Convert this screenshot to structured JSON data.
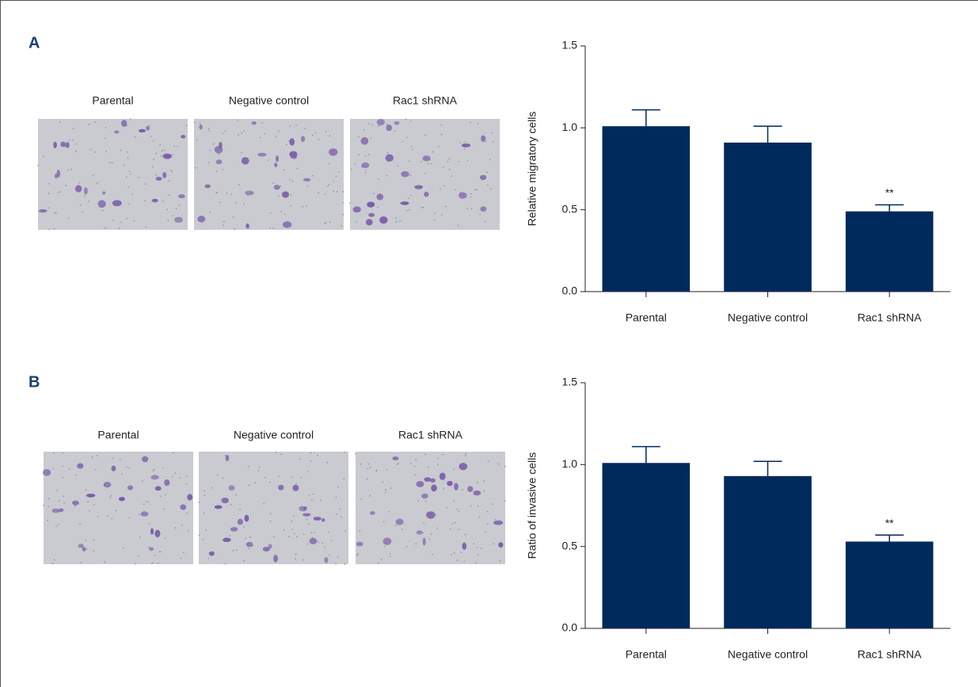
{
  "panels": [
    {
      "label": "A",
      "image_captions": [
        "Parental",
        "Negative control",
        "Rac1 shRNA"
      ]
    },
    {
      "label": "B",
      "image_captions": [
        "Parental",
        "Negative control",
        "Rac1 shRNA"
      ]
    }
  ],
  "chart_data": [
    {
      "type": "bar",
      "y_label": "Relative migratory cells",
      "categories": [
        "Parental",
        "Negative control",
        "Rac1 shRNA"
      ],
      "series": [
        {
          "color": "#002a5c",
          "values": [
            1.01,
            0.91,
            0.49
          ],
          "errors": [
            0.1,
            0.1,
            0.04
          ]
        }
      ],
      "significance": [
        null,
        null,
        "**"
      ],
      "ylim": [
        0,
        1.5
      ],
      "yticks": [
        {
          "value": 0,
          "label": "0.0"
        },
        {
          "value": 0.5,
          "label": "0.5"
        },
        {
          "value": 1,
          "label": "1.0"
        },
        {
          "value": 1.5,
          "label": "1.5"
        }
      ]
    },
    {
      "type": "bar",
      "y_label": "Ratio of invasive cells",
      "categories": [
        "Parental",
        "Negative control",
        "Rac1 shRNA"
      ],
      "series": [
        {
          "color": "#002a5c",
          "values": [
            1.01,
            0.93,
            0.53
          ],
          "errors": [
            0.1,
            0.09,
            0.04
          ]
        }
      ],
      "significance": [
        null,
        null,
        "**"
      ],
      "ylim": [
        0,
        1.5
      ],
      "yticks": [
        {
          "value": 0,
          "label": "0.0"
        },
        {
          "value": 0.5,
          "label": "0.5"
        },
        {
          "value": 1,
          "label": "1.0"
        },
        {
          "value": 1.5,
          "label": "1.5"
        }
      ]
    }
  ]
}
